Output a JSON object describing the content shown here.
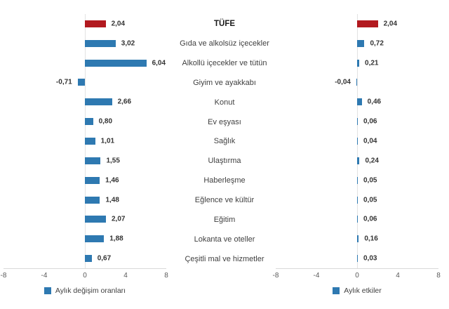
{
  "chart_data": {
    "type": "bar",
    "orientation": "horizontal",
    "title": "TÜFE",
    "categories": [
      "TÜFE",
      "Gıda ve alkolsüz içecekler",
      "Alkollü içecekler ve tütün",
      "Giyim ve ayakkabı",
      "Konut",
      "Ev eşyası",
      "Sağlık",
      "Ulaştırma",
      "Haberleşme",
      "Eğlence ve kültür",
      "Eğitim",
      "Lokanta ve oteller",
      "Çeşitli mal ve hizmetler"
    ],
    "series": [
      {
        "name": "Aylık değişim oranları",
        "values": [
          2.04,
          3.02,
          6.04,
          -0.71,
          2.66,
          0.8,
          1.01,
          1.55,
          1.46,
          1.48,
          2.07,
          1.88,
          0.67
        ],
        "value_labels": [
          "2,04",
          "3,02",
          "6,04",
          "-0,71",
          "2,66",
          "0,80",
          "1,01",
          "1,55",
          "1,46",
          "1,48",
          "2,07",
          "1,88",
          "0,67"
        ]
      },
      {
        "name": "Aylık etkiler",
        "values": [
          2.04,
          0.72,
          0.21,
          -0.04,
          0.46,
          0.06,
          0.04,
          0.24,
          0.05,
          0.05,
          0.06,
          0.16,
          0.03
        ],
        "value_labels": [
          "2,04",
          "0,72",
          "0,21",
          "-0,04",
          "0,46",
          "0,06",
          "0,04",
          "0,24",
          "0,05",
          "0,05",
          "0,06",
          "0,16",
          "0,03"
        ]
      }
    ],
    "highlight_row": 0,
    "xlim": [
      -8,
      8
    ],
    "x_ticks": [
      "-8",
      "-4",
      "0",
      "4",
      "8"
    ],
    "grid": "zero-line-only",
    "legend_position": "bottom",
    "colors": {
      "bar": "#2E79B1",
      "highlight_bar": "#B2191F",
      "zero_line": "#E2E2E2",
      "axis_line": "#D9D9D9",
      "value_label": "#333333",
      "category_label": "#404040",
      "tick_label": "#595959"
    }
  },
  "legend": {
    "left_label": "Aylık değişim oranları",
    "right_label": "Aylık etkiler"
  }
}
